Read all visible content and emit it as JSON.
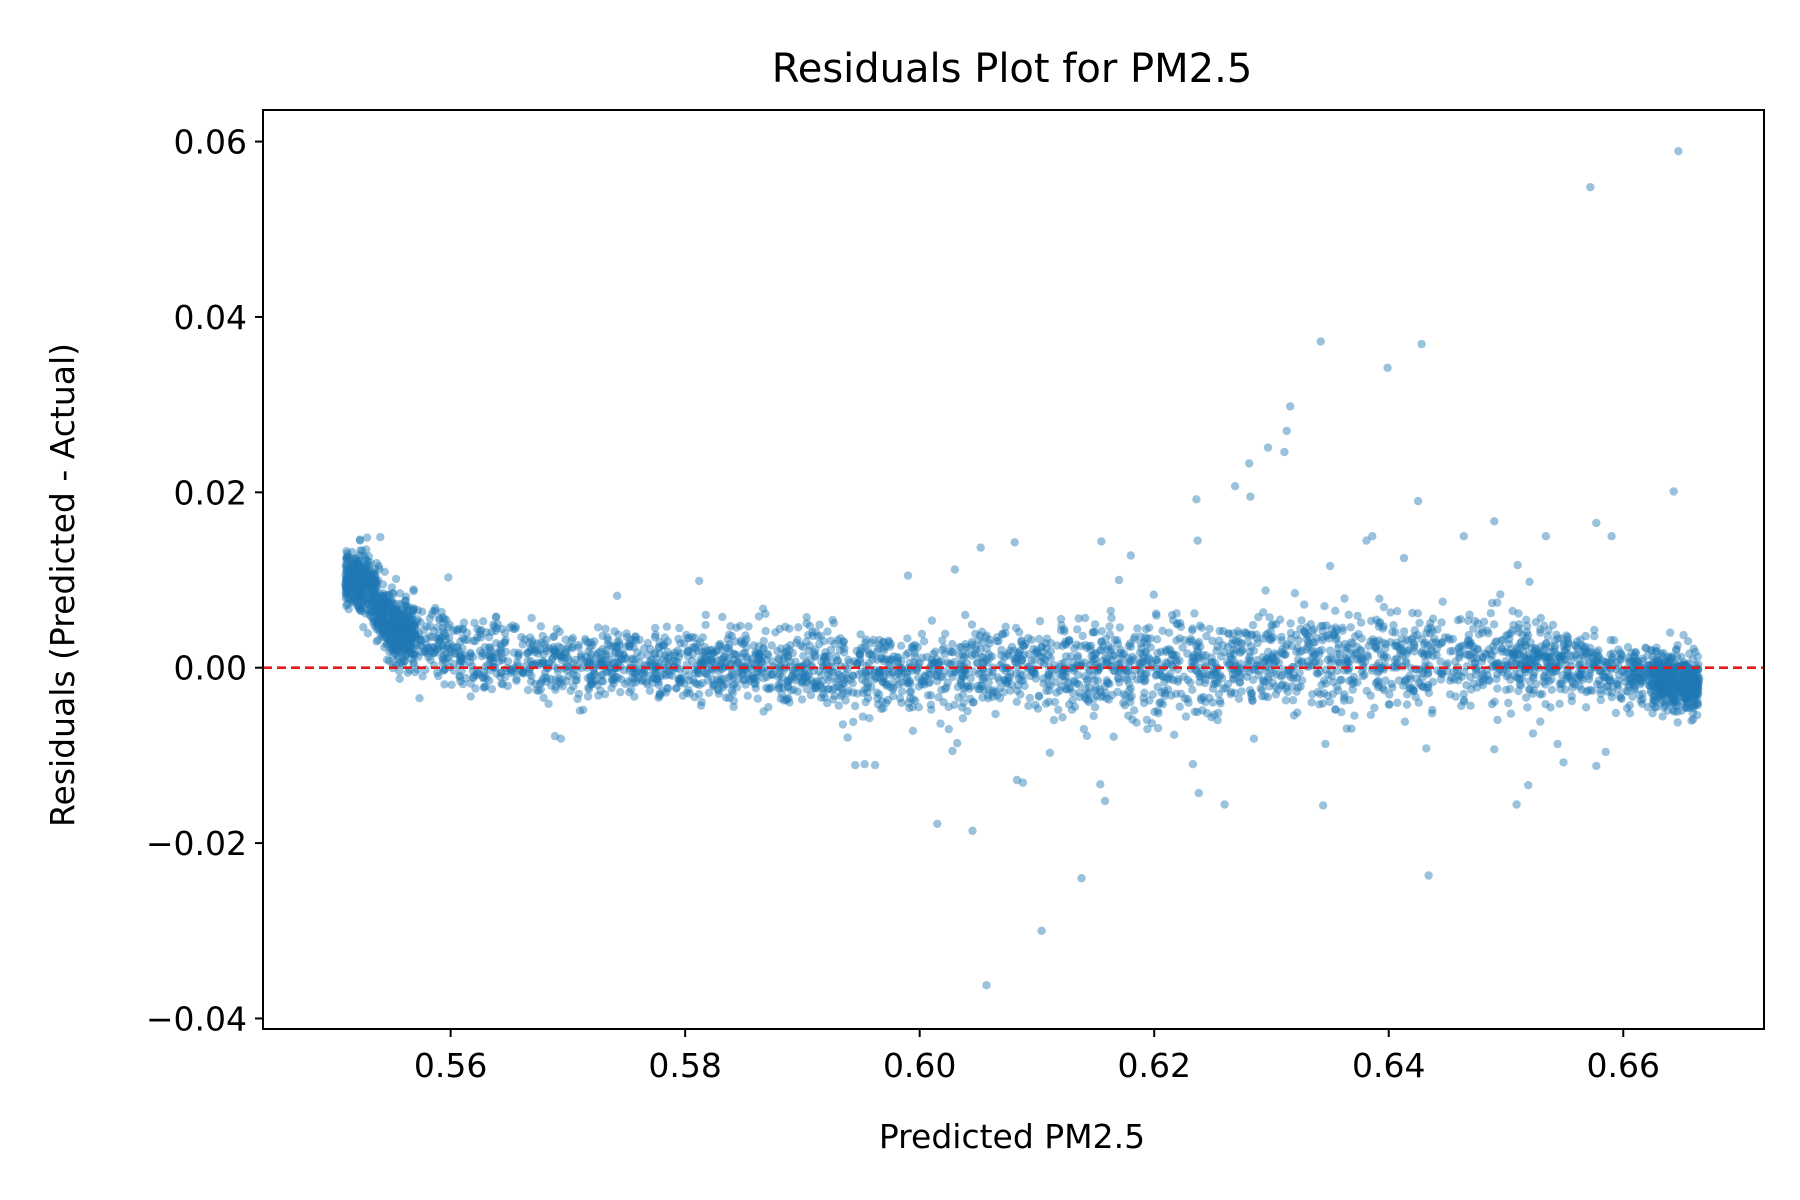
{
  "chart_data": {
    "type": "scatter",
    "title": "Residuals Plot for PM2.5",
    "xlabel": "Predicted PM2.5",
    "ylabel": "Residuals (Predicted - Actual)",
    "xlim": [
      0.544,
      0.672
    ],
    "ylim": [
      -0.0412,
      0.0636
    ],
    "x_ticks": [
      0.56,
      0.58,
      0.6,
      0.62,
      0.64,
      0.66
    ],
    "x_tick_labels": [
      "0.56",
      "0.58",
      "0.60",
      "0.62",
      "0.64",
      "0.66"
    ],
    "y_ticks": [
      -0.04,
      -0.02,
      0.0,
      0.02,
      0.04,
      0.06
    ],
    "y_tick_labels": [
      "−0.04",
      "−0.02",
      "0.00",
      "0.02",
      "0.04",
      "0.06"
    ],
    "reference_line": {
      "y": 0.0,
      "color": "#e8191b",
      "style": "dashed"
    },
    "point_color": "#1f77b4",
    "grid": false,
    "legend": "none",
    "trend_profile": [
      [
        0.551,
        0.0105,
        0.0015
      ],
      [
        0.553,
        0.009,
        0.002
      ],
      [
        0.555,
        0.0045,
        0.002
      ],
      [
        0.558,
        0.0028,
        0.002
      ],
      [
        0.562,
        0.0015,
        0.002
      ],
      [
        0.57,
        0.0005,
        0.002
      ],
      [
        0.585,
        0.0005,
        0.002
      ],
      [
        0.595,
        -0.001,
        0.0025
      ],
      [
        0.61,
        0.0005,
        0.0025
      ],
      [
        0.62,
        -0.0005,
        0.003
      ],
      [
        0.63,
        0.001,
        0.0025
      ],
      [
        0.64,
        0.001,
        0.003
      ],
      [
        0.655,
        0.0005,
        0.002
      ],
      [
        0.6665,
        -0.002,
        0.0015
      ]
    ],
    "outliers": [
      [
        0.6647,
        0.0589
      ],
      [
        0.6572,
        0.0548
      ],
      [
        0.6342,
        0.0372
      ],
      [
        0.6428,
        0.0369
      ],
      [
        0.6399,
        0.0342
      ],
      [
        0.6316,
        0.0298
      ],
      [
        0.6313,
        0.027
      ],
      [
        0.6297,
        0.0251
      ],
      [
        0.6311,
        0.0246
      ],
      [
        0.6281,
        0.0233
      ],
      [
        0.6269,
        0.0207
      ],
      [
        0.6643,
        0.0201
      ],
      [
        0.6236,
        0.0192
      ],
      [
        0.6282,
        0.0195
      ],
      [
        0.6425,
        0.019
      ],
      [
        0.649,
        0.0167
      ],
      [
        0.6577,
        0.0165
      ],
      [
        0.659,
        0.015
      ],
      [
        0.6534,
        0.015
      ],
      [
        0.6386,
        0.015
      ],
      [
        0.6464,
        0.015
      ],
      [
        0.6381,
        0.0145
      ],
      [
        0.6155,
        0.0144
      ],
      [
        0.6081,
        0.0143
      ],
      [
        0.554,
        0.0149
      ],
      [
        0.6237,
        0.0145
      ],
      [
        0.618,
        0.0128
      ],
      [
        0.6413,
        0.0125
      ],
      [
        0.635,
        0.0116
      ],
      [
        0.651,
        0.0117
      ],
      [
        0.599,
        0.0105
      ],
      [
        0.603,
        0.0112
      ],
      [
        0.6052,
        0.0137
      ],
      [
        0.617,
        0.01
      ],
      [
        0.652,
        0.0098
      ],
      [
        0.5812,
        0.0099
      ],
      [
        0.5598,
        0.0103
      ],
      [
        0.5742,
        0.0082
      ],
      [
        0.6032,
        -0.0086
      ],
      [
        0.6045,
        -0.0186
      ],
      [
        0.6015,
        -0.0178
      ],
      [
        0.6138,
        -0.024
      ],
      [
        0.6104,
        -0.03
      ],
      [
        0.6057,
        -0.0362
      ],
      [
        0.6434,
        -0.0237
      ],
      [
        0.626,
        -0.0156
      ],
      [
        0.6344,
        -0.0157
      ],
      [
        0.6509,
        -0.0156
      ],
      [
        0.6158,
        -0.0152
      ],
      [
        0.6238,
        -0.0143
      ],
      [
        0.6154,
        -0.0133
      ],
      [
        0.6519,
        -0.0134
      ],
      [
        0.6083,
        -0.0128
      ],
      [
        0.6088,
        -0.0131
      ],
      [
        0.6233,
        -0.011
      ],
      [
        0.6549,
        -0.0108
      ],
      [
        0.6577,
        -0.0112
      ],
      [
        0.6544,
        -0.0087
      ],
      [
        0.5945,
        -0.0111
      ],
      [
        0.5953,
        -0.011
      ],
      [
        0.5962,
        -0.0111
      ],
      [
        0.6028,
        -0.0095
      ],
      [
        0.6111,
        -0.0097
      ],
      [
        0.5689,
        -0.0078
      ],
      [
        0.5694,
        -0.0081
      ],
      [
        0.6285,
        -0.0081
      ],
      [
        0.6346,
        -0.0087
      ],
      [
        0.6432,
        -0.0092
      ],
      [
        0.649,
        -0.0093
      ],
      [
        0.6523,
        -0.0075
      ],
      [
        0.6585,
        -0.0096
      ],
      [
        0.6625,
        -0.0052
      ],
      [
        0.664,
        0.004
      ],
      [
        0.6295,
        0.0088
      ],
      [
        0.632,
        0.0085
      ],
      [
        0.614,
        -0.007
      ],
      [
        0.5871,
        -0.0045
      ]
    ]
  }
}
